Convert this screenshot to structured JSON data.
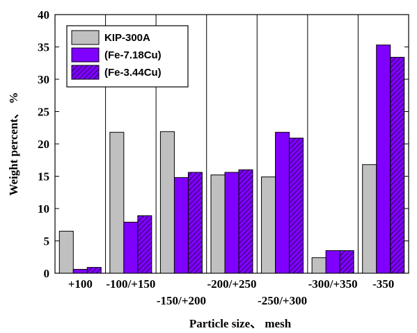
{
  "chart_data": {
    "type": "bar",
    "title": "",
    "xlabel": "Particle size、 mesh",
    "ylabel": "Weight percent、 %",
    "ylim": [
      0,
      40
    ],
    "yticks": [
      0,
      5,
      10,
      15,
      20,
      25,
      30,
      35,
      40
    ],
    "grid": false,
    "legend_position": "top-left",
    "categories": [
      "+100",
      "-100/+150",
      "-150/+200",
      "-200/+250",
      "-250/+300",
      "-300/+350",
      "-350"
    ],
    "series": [
      {
        "name": "KIP-300A",
        "color": "#c0c0c0",
        "pattern": "solid",
        "values": [
          6.5,
          21.8,
          21.9,
          15.2,
          14.9,
          2.4,
          16.8
        ]
      },
      {
        "name": "(Fe-7.18Cu)",
        "color": "#7f00ff",
        "pattern": "solid",
        "values": [
          0.6,
          7.9,
          14.8,
          15.6,
          21.8,
          3.5,
          35.3
        ]
      },
      {
        "name": "(Fe-3.44Cu)",
        "color": "#7f00ff",
        "pattern": "hatched",
        "values": [
          0.9,
          8.9,
          15.6,
          16.0,
          20.9,
          3.5,
          33.4
        ]
      }
    ]
  }
}
